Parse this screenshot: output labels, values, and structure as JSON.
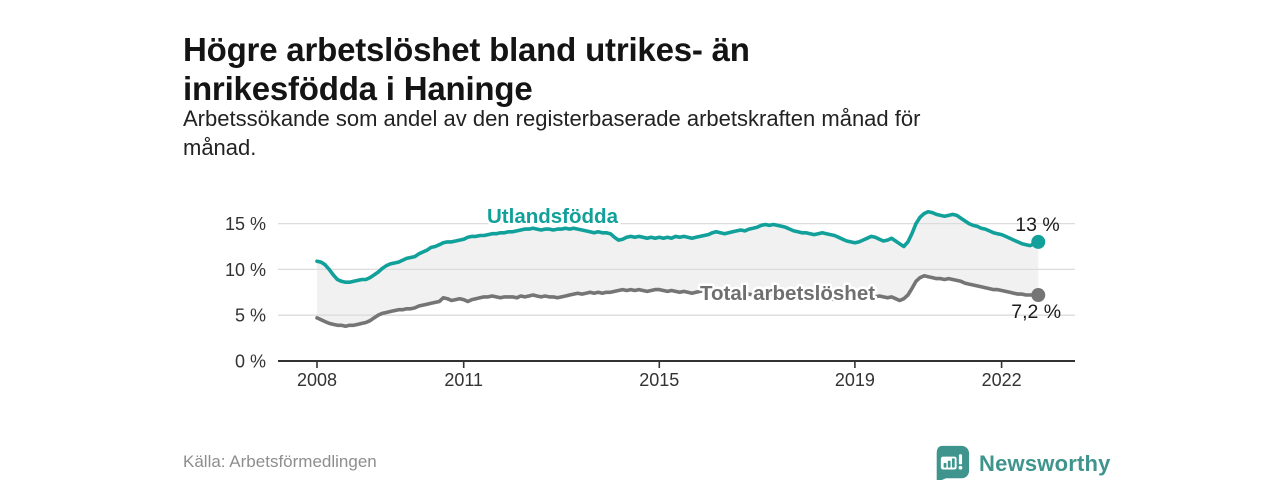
{
  "header": {
    "title_lines": [
      "Högre arbetslöshet bland utrikes- än",
      "inrikesfödda i Haninge"
    ],
    "subtitle_lines": [
      "Arbetssökande som andel av den registerbaserade arbetskraften månad för",
      "månad."
    ]
  },
  "footer": {
    "source": "Källa: Arbetsförmedlingen",
    "brand_name": "Newsworthy",
    "brand_color": "#3f958d"
  },
  "chart_data": {
    "type": "line",
    "title": "Högre arbetslöshet bland utrikes- än inrikesfödda i Haninge",
    "x_start_year": 2008,
    "x_frequency": "monthly",
    "ylim": [
      0,
      17
    ],
    "grid": "horizontal",
    "y_ticks": [
      {
        "value": 0,
        "label": "0 %"
      },
      {
        "value": 5,
        "label": "5 %"
      },
      {
        "value": 10,
        "label": "10 %"
      },
      {
        "value": 15,
        "label": "15 %"
      }
    ],
    "x_ticks": [
      {
        "year": 2008,
        "label": "2008"
      },
      {
        "year": 2011,
        "label": "2011"
      },
      {
        "year": 2015,
        "label": "2015"
      },
      {
        "year": 2019,
        "label": "2019"
      },
      {
        "year": 2022,
        "label": "2022"
      }
    ],
    "colors": {
      "accent_teal": "#12a09a",
      "series_gray": "#757575",
      "fill_between": "#f1f1f1",
      "gridline": "#dcdcdc",
      "axis": "#333333",
      "tick_label": "#333333",
      "end_label": "#1a1a1a"
    },
    "series": [
      {
        "id": "utlandsfodda",
        "name": "Utlandsfödda",
        "color": "#12a09a",
        "end_label": "13 %",
        "values": [
          10.9,
          10.8,
          10.5,
          10.0,
          9.4,
          8.9,
          8.7,
          8.6,
          8.6,
          8.7,
          8.8,
          8.9,
          8.9,
          9.1,
          9.4,
          9.7,
          10.1,
          10.4,
          10.6,
          10.7,
          10.8,
          11.0,
          11.2,
          11.3,
          11.4,
          11.7,
          11.9,
          12.1,
          12.4,
          12.5,
          12.7,
          12.9,
          13.0,
          13.0,
          13.1,
          13.2,
          13.3,
          13.5,
          13.6,
          13.6,
          13.7,
          13.7,
          13.8,
          13.9,
          13.9,
          14.0,
          14.0,
          14.1,
          14.1,
          14.2,
          14.3,
          14.4,
          14.4,
          14.5,
          14.4,
          14.3,
          14.4,
          14.4,
          14.3,
          14.4,
          14.4,
          14.5,
          14.4,
          14.5,
          14.4,
          14.3,
          14.2,
          14.1,
          14.0,
          14.1,
          14.0,
          14.0,
          13.9,
          13.5,
          13.2,
          13.3,
          13.5,
          13.6,
          13.5,
          13.6,
          13.5,
          13.4,
          13.5,
          13.4,
          13.5,
          13.4,
          13.5,
          13.4,
          13.6,
          13.5,
          13.6,
          13.5,
          13.4,
          13.5,
          13.6,
          13.7,
          13.8,
          14.0,
          14.1,
          14.0,
          13.9,
          14.0,
          14.1,
          14.2,
          14.3,
          14.2,
          14.4,
          14.5,
          14.6,
          14.8,
          14.9,
          14.8,
          14.9,
          14.8,
          14.7,
          14.6,
          14.4,
          14.2,
          14.1,
          14.0,
          14.0,
          13.9,
          13.8,
          13.9,
          14.0,
          13.9,
          13.8,
          13.7,
          13.5,
          13.3,
          13.1,
          13.0,
          12.9,
          13.0,
          13.2,
          13.4,
          13.6,
          13.5,
          13.3,
          13.1,
          13.2,
          13.4,
          13.1,
          12.8,
          12.5,
          13.0,
          13.9,
          15.0,
          15.7,
          16.1,
          16.3,
          16.2,
          16.0,
          15.9,
          15.8,
          15.9,
          16.0,
          15.9,
          15.6,
          15.3,
          15.0,
          14.8,
          14.7,
          14.5,
          14.4,
          14.2,
          14.0,
          13.9,
          13.8,
          13.6,
          13.4,
          13.2,
          13.0,
          12.8,
          12.7,
          12.6,
          12.8,
          13.0
        ]
      },
      {
        "id": "total",
        "name": "Total arbetslöshet",
        "color": "#757575",
        "label_color": "#6f6f6f",
        "end_label": "7,2 %",
        "values": [
          4.7,
          4.5,
          4.3,
          4.1,
          4.0,
          3.9,
          3.9,
          3.8,
          3.9,
          3.9,
          4.0,
          4.1,
          4.2,
          4.4,
          4.7,
          5.0,
          5.2,
          5.3,
          5.4,
          5.5,
          5.6,
          5.6,
          5.7,
          5.7,
          5.8,
          6.0,
          6.1,
          6.2,
          6.3,
          6.4,
          6.5,
          6.9,
          6.8,
          6.6,
          6.7,
          6.8,
          6.7,
          6.5,
          6.7,
          6.8,
          6.9,
          7.0,
          7.0,
          7.1,
          7.0,
          6.9,
          7.0,
          7.0,
          7.0,
          6.9,
          7.1,
          7.0,
          7.1,
          7.2,
          7.1,
          7.0,
          7.1,
          7.0,
          7.0,
          6.9,
          7.0,
          7.1,
          7.2,
          7.3,
          7.4,
          7.3,
          7.4,
          7.5,
          7.4,
          7.5,
          7.4,
          7.5,
          7.5,
          7.6,
          7.7,
          7.8,
          7.7,
          7.8,
          7.7,
          7.8,
          7.7,
          7.6,
          7.7,
          7.8,
          7.8,
          7.7,
          7.6,
          7.7,
          7.6,
          7.5,
          7.6,
          7.5,
          7.4,
          7.5,
          7.6,
          7.7,
          7.7,
          7.6,
          7.5,
          7.6,
          7.5,
          7.4,
          7.5,
          7.4,
          7.3,
          7.4,
          7.3,
          7.2,
          7.2,
          7.3,
          7.2,
          7.3,
          7.2,
          7.1,
          7.2,
          7.1,
          7.0,
          7.0,
          6.9,
          7.0,
          7.0,
          6.9,
          6.8,
          6.9,
          6.8,
          6.7,
          6.8,
          6.7,
          6.6,
          6.7,
          6.8,
          6.9,
          6.9,
          7.0,
          7.1,
          7.0,
          7.1,
          7.0,
          7.1,
          7.0,
          6.9,
          7.0,
          6.8,
          6.6,
          6.8,
          7.2,
          7.9,
          8.7,
          9.1,
          9.3,
          9.2,
          9.1,
          9.0,
          9.0,
          8.9,
          9.0,
          8.9,
          8.8,
          8.7,
          8.5,
          8.4,
          8.3,
          8.2,
          8.1,
          8.0,
          7.9,
          7.8,
          7.8,
          7.7,
          7.6,
          7.5,
          7.4,
          7.3,
          7.3,
          7.2,
          7.2,
          7.2,
          7.2
        ]
      }
    ]
  }
}
